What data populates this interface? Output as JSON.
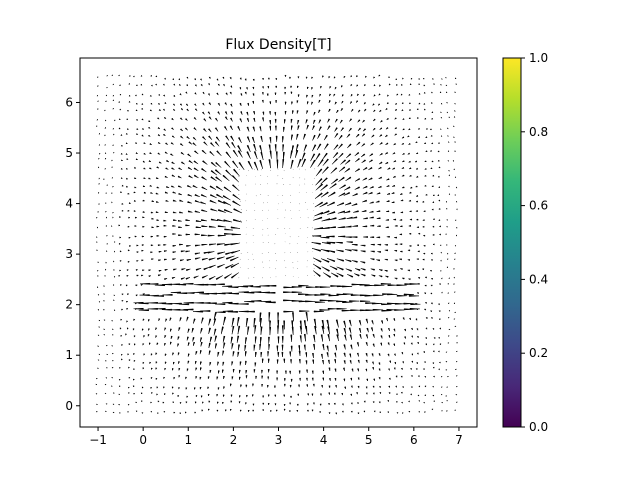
{
  "chart_data": {
    "type": "quiver",
    "title": "Flux Density[T]",
    "xlabel": "",
    "ylabel": "",
    "xlim": [
      -1.4,
      7.4
    ],
    "ylim": [
      -0.42,
      6.88
    ],
    "xticks": [
      "−1",
      "0",
      "1",
      "2",
      "3",
      "4",
      "5",
      "6",
      "7"
    ],
    "xtick_values": [
      -1,
      0,
      1,
      2,
      3,
      4,
      5,
      6,
      7
    ],
    "yticks": [
      "0",
      "1",
      "2",
      "3",
      "4",
      "5",
      "6"
    ],
    "ytick_values": [
      0,
      1,
      2,
      3,
      4,
      5,
      6
    ],
    "grid": false,
    "field": {
      "domain_x": [
        -1,
        7
      ],
      "domain_y": [
        -0.1,
        6.6
      ],
      "magnet_core": {
        "x": [
          2.1,
          3.9
        ],
        "y": [
          2.05,
          4.7
        ]
      },
      "flange": {
        "x": [
          0,
          6
        ],
        "y": [
          1.85,
          2.5
        ]
      }
    },
    "colorbar": {
      "colormap": "viridis",
      "range": [
        0,
        1
      ],
      "ticks": [
        "0.0",
        "0.2",
        "0.4",
        "0.6",
        "0.8",
        "1.0"
      ],
      "tick_values": [
        0,
        0.2,
        0.4,
        0.6,
        0.8,
        1.0
      ],
      "colors": [
        "#440154",
        "#482878",
        "#3e4989",
        "#31688e",
        "#26828e",
        "#1f9e89",
        "#35b779",
        "#6ece58",
        "#b5de2b",
        "#fde725"
      ]
    }
  }
}
